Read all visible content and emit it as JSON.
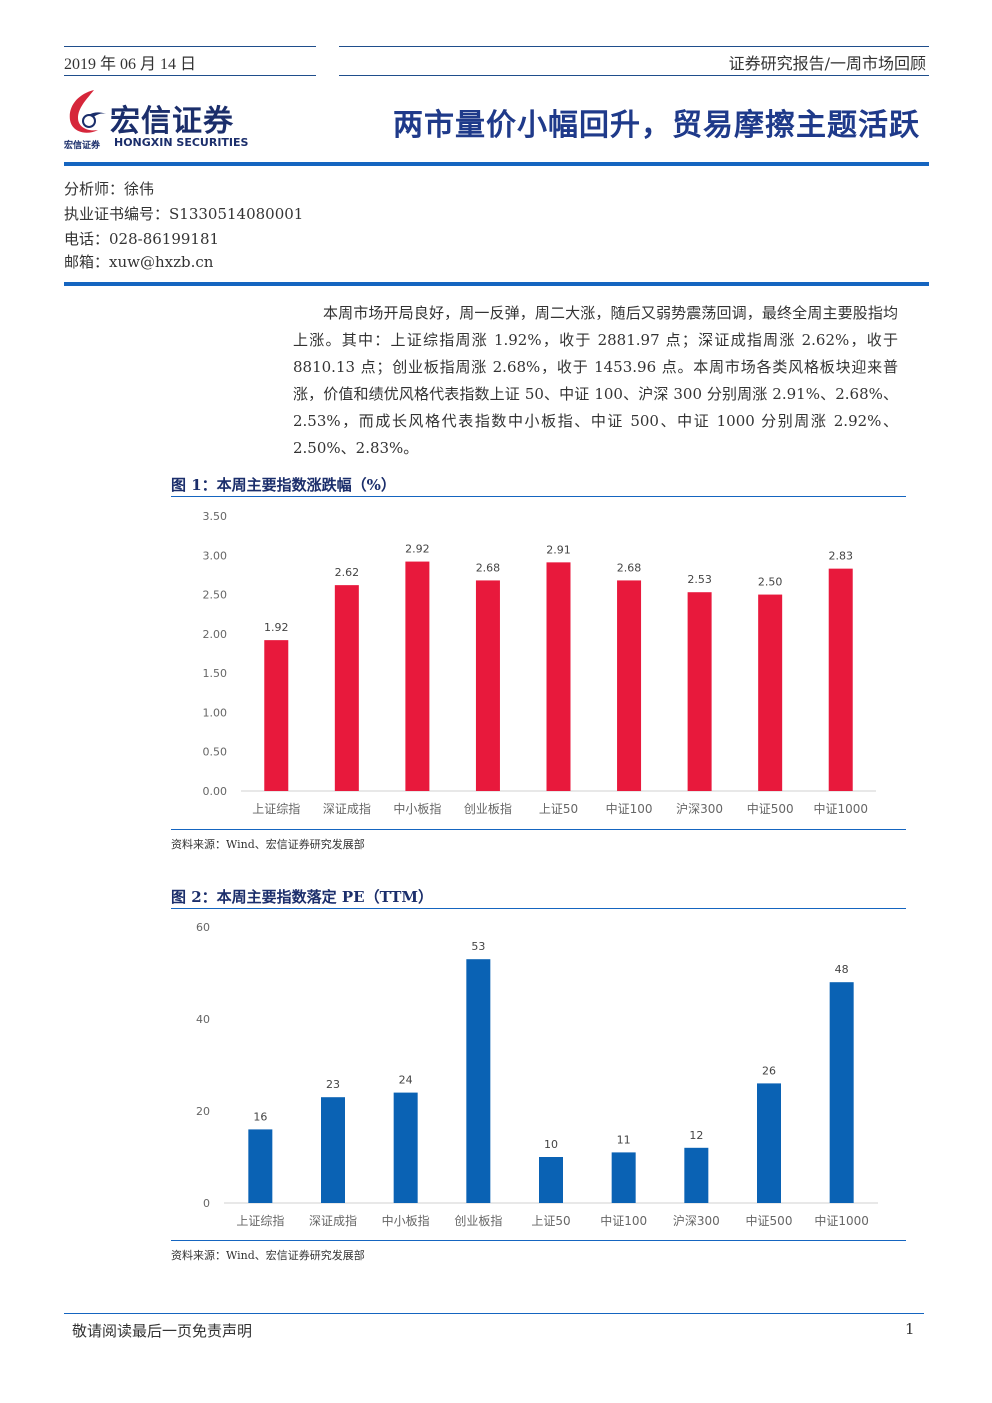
{
  "header": {
    "date": "2019 年 06 月 14 日",
    "report_type": "证券研究报告/一周市场回顾",
    "headline": "两市量价小幅回升，贸易摩擦主题活跃",
    "logo": {
      "cn": "宏信证券",
      "cn_small": "宏信证券",
      "en": "HONGXIN SECURITIES"
    }
  },
  "analyst": {
    "name": "分析师：徐伟",
    "cert": "执业证书编号：S1330514080001",
    "phone": "电话：028-86199181",
    "email": "邮箱：xuw@hxzb.cn"
  },
  "body": {
    "paragraph": "本周市场开局良好，周一反弹，周二大涨，随后又弱势震荡回调，最终全周主要股指均上涨。其中：上证综指周涨 1.92%，收于 2881.97 点；深证成指周涨 2.62%，收于 8810.13 点；创业板指周涨 2.68%，收于 1453.96 点。本周市场各类风格板块迎来普涨，价值和绩优风格代表指数上证 50、中证 100、沪深 300 分别周涨 2.91%、2.68%、2.53%，而成长风格代表指数中小板指、中证 500、中证 1000 分别周涨 2.92%、2.50%、2.83%。"
  },
  "figures": {
    "fig1_title": "图 1：本周主要指数涨跌幅（%）",
    "fig1_source": "资料来源：Wind、宏信证券研究发展部",
    "fig2_title": "图 2：本周主要指数落定 PE（TTM）",
    "fig2_source": "资料来源：Wind、宏信证券研究发展部"
  },
  "chart_data": [
    {
      "type": "bar",
      "title": "",
      "categories": [
        "上证综指",
        "深证成指",
        "中小板指",
        "创业板指",
        "上证50",
        "中证100",
        "沪深300",
        "中证500",
        "中证1000"
      ],
      "values": [
        1.92,
        2.62,
        2.92,
        2.68,
        2.91,
        2.68,
        2.53,
        2.5,
        2.83
      ],
      "data_labels": [
        "1.92",
        "2.62",
        "2.92",
        "2.68",
        "2.91",
        "2.68",
        "2.53",
        "2.50",
        "2.83"
      ],
      "yticks": [
        "0.00",
        "0.50",
        "1.00",
        "1.50",
        "2.00",
        "2.50",
        "3.00",
        "3.50"
      ],
      "ylim": [
        0,
        3.5
      ],
      "color": "#e8193c",
      "grid": false
    },
    {
      "type": "bar",
      "title": "",
      "categories": [
        "上证综指",
        "深证成指",
        "中小板指",
        "创业板指",
        "上证50",
        "中证100",
        "沪深300",
        "中证500",
        "中证1000"
      ],
      "values": [
        16,
        23,
        24,
        53,
        10,
        11,
        12,
        26,
        48
      ],
      "data_labels": [
        "16",
        "23",
        "24",
        "53",
        "10",
        "11",
        "12",
        "26",
        "48"
      ],
      "yticks": [
        "0",
        "20",
        "40",
        "60"
      ],
      "ylim": [
        0,
        60
      ],
      "color": "#0a62b4",
      "grid": false
    }
  ],
  "footer": {
    "disclaimer": "敬请阅读最后一页免责声明",
    "page": "1"
  }
}
